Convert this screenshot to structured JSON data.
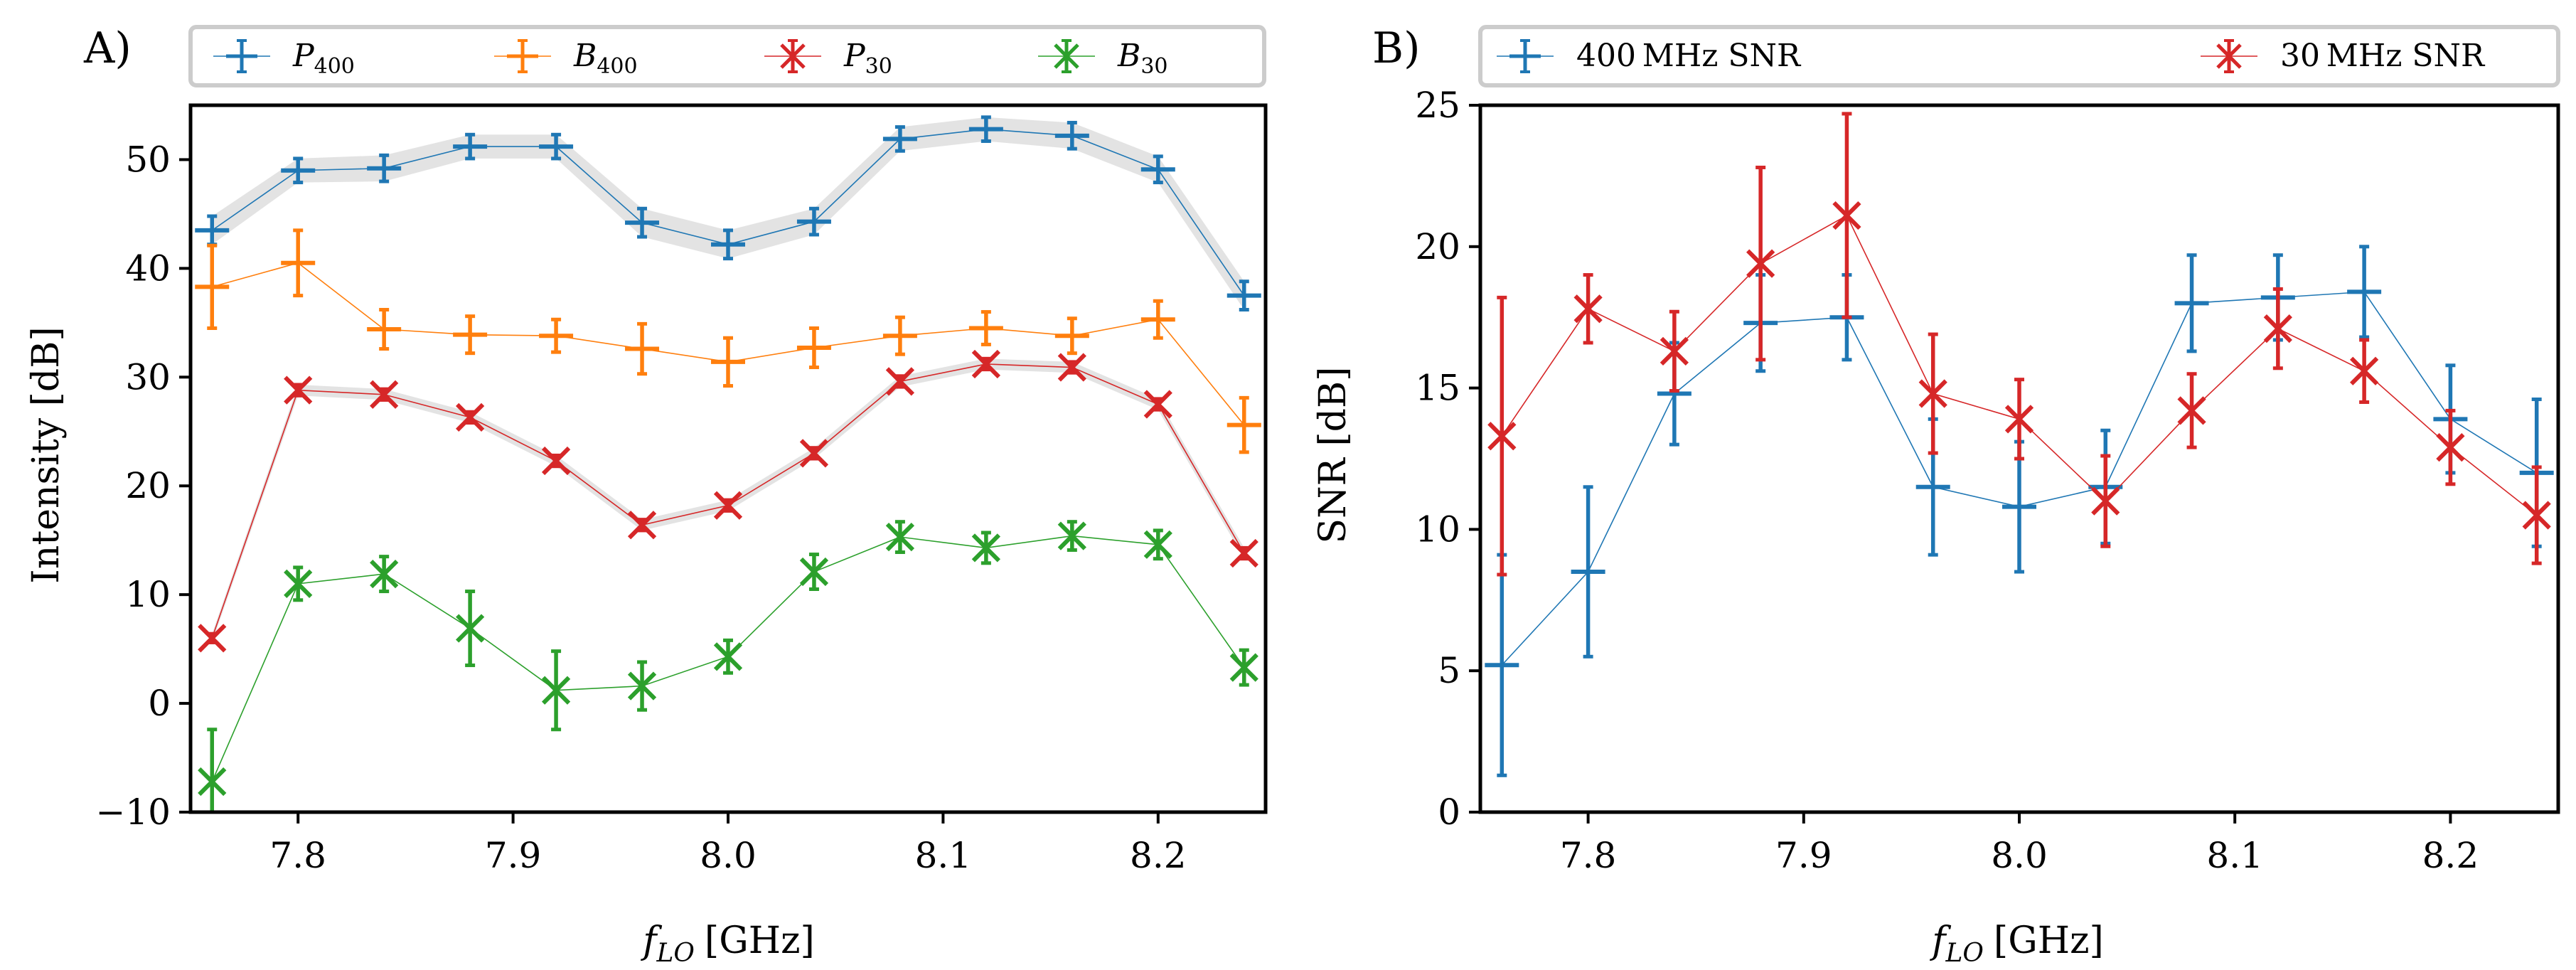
{
  "chart_data": [
    {
      "panel_label": "A)",
      "type": "line",
      "xlabel_main": "f",
      "xlabel_sub": "LO",
      "xlabel_unit": "[GHz]",
      "ylabel": "Intensity [dB]",
      "xlim": [
        7.75,
        8.25
      ],
      "ylim": [
        -10,
        55
      ],
      "xticks": [
        "7.8",
        "7.9",
        "8.0",
        "8.1",
        "8.2"
      ],
      "yticks": [
        "−10",
        "0",
        "10",
        "20",
        "30",
        "40",
        "50"
      ],
      "grid": false,
      "legend_position": "top",
      "series": [
        {
          "name": "P",
          "name_sub": "400",
          "color": "#1f77b4",
          "marker": "plus",
          "band": true,
          "x": [
            7.76,
            7.8,
            7.84,
            7.88,
            7.92,
            7.96,
            8.0,
            8.04,
            8.08,
            8.12,
            8.16,
            8.2,
            8.24
          ],
          "y": [
            43.5,
            49,
            49.2,
            51.2,
            51.2,
            44.2,
            42.2,
            44.3,
            51.9,
            52.8,
            52.2,
            49.1,
            37.5
          ],
          "err": [
            1.3,
            1.1,
            1.2,
            1.1,
            1.1,
            1.3,
            1.3,
            1.2,
            1.1,
            1.1,
            1.2,
            1.2,
            1.3
          ]
        },
        {
          "name": "B",
          "name_sub": "400",
          "color": "#ff7f0e",
          "marker": "plus",
          "band": false,
          "x": [
            7.76,
            7.8,
            7.84,
            7.88,
            7.92,
            7.96,
            8.0,
            8.04,
            8.08,
            8.12,
            8.16,
            8.2,
            8.24
          ],
          "y": [
            38.3,
            40.5,
            34.4,
            33.9,
            33.8,
            32.6,
            31.4,
            32.7,
            33.8,
            34.5,
            33.8,
            35.3,
            25.6
          ],
          "err": [
            3.8,
            3.0,
            1.8,
            1.7,
            1.5,
            2.3,
            2.2,
            1.8,
            1.7,
            1.5,
            1.6,
            1.7,
            2.5
          ]
        },
        {
          "name": "P",
          "name_sub": "30",
          "color": "#d62728",
          "marker": "x",
          "band": true,
          "x": [
            7.76,
            7.8,
            7.84,
            7.88,
            7.92,
            7.96,
            8.0,
            8.04,
            8.08,
            8.12,
            8.16,
            8.2,
            8.24
          ],
          "y": [
            6,
            28.8,
            28.4,
            26.3,
            22.3,
            16.4,
            18.2,
            23.0,
            29.6,
            31.2,
            30.9,
            27.5,
            13.8
          ],
          "err": [
            0.4,
            0.5,
            0.5,
            0.5,
            0.5,
            0.5,
            0.5,
            0.5,
            0.5,
            0.5,
            0.5,
            0.5,
            0.5
          ]
        },
        {
          "name": "B",
          "name_sub": "30",
          "color": "#2ca02c",
          "marker": "x",
          "band": false,
          "x": [
            7.76,
            7.8,
            7.84,
            7.88,
            7.92,
            7.96,
            8.0,
            8.04,
            8.08,
            8.12,
            8.16,
            8.2,
            8.24
          ],
          "y": [
            -7.2,
            11,
            11.9,
            6.9,
            1.2,
            1.6,
            4.3,
            12.1,
            15.3,
            14.3,
            15.4,
            14.6,
            3.3
          ],
          "err": [
            4.8,
            1.5,
            1.6,
            3.4,
            3.6,
            2.2,
            1.5,
            1.6,
            1.4,
            1.4,
            1.3,
            1.3,
            1.6
          ]
        }
      ]
    },
    {
      "panel_label": "B)",
      "type": "line",
      "xlabel_main": "f",
      "xlabel_sub": "LO",
      "xlabel_unit": "[GHz]",
      "ylabel": "SNR [dB]",
      "xlim": [
        7.75,
        8.25
      ],
      "ylim": [
        0,
        25
      ],
      "xticks": [
        "7.8",
        "7.9",
        "8.0",
        "8.1",
        "8.2"
      ],
      "yticks": [
        "0",
        "5",
        "10",
        "15",
        "20",
        "25"
      ],
      "grid": false,
      "legend_position": "top",
      "series": [
        {
          "name": "400 MHz SNR",
          "color": "#1f77b4",
          "marker": "plus",
          "band": false,
          "x": [
            7.76,
            7.8,
            7.84,
            7.88,
            7.92,
            7.96,
            8.0,
            8.04,
            8.08,
            8.12,
            8.16,
            8.2,
            8.24
          ],
          "y": [
            5.2,
            8.5,
            14.8,
            17.3,
            17.5,
            11.5,
            10.8,
            11.5,
            18.0,
            18.2,
            18.4,
            13.9,
            12.0
          ],
          "err": [
            3.9,
            3.0,
            1.8,
            1.7,
            1.5,
            2.4,
            2.3,
            2.0,
            1.7,
            1.5,
            1.6,
            1.9,
            2.6
          ]
        },
        {
          "name": "30 MHz SNR",
          "color": "#d62728",
          "marker": "x",
          "band": false,
          "x": [
            7.76,
            7.8,
            7.84,
            7.88,
            7.92,
            7.96,
            8.0,
            8.04,
            8.08,
            8.12,
            8.16,
            8.2,
            8.24
          ],
          "y": [
            13.3,
            17.8,
            16.3,
            19.4,
            21.1,
            14.8,
            13.9,
            11.0,
            14.2,
            17.1,
            15.6,
            12.9,
            10.5
          ],
          "err": [
            4.9,
            1.2,
            1.4,
            3.4,
            3.6,
            2.1,
            1.4,
            1.6,
            1.3,
            1.4,
            1.1,
            1.3,
            1.7
          ]
        }
      ]
    }
  ]
}
